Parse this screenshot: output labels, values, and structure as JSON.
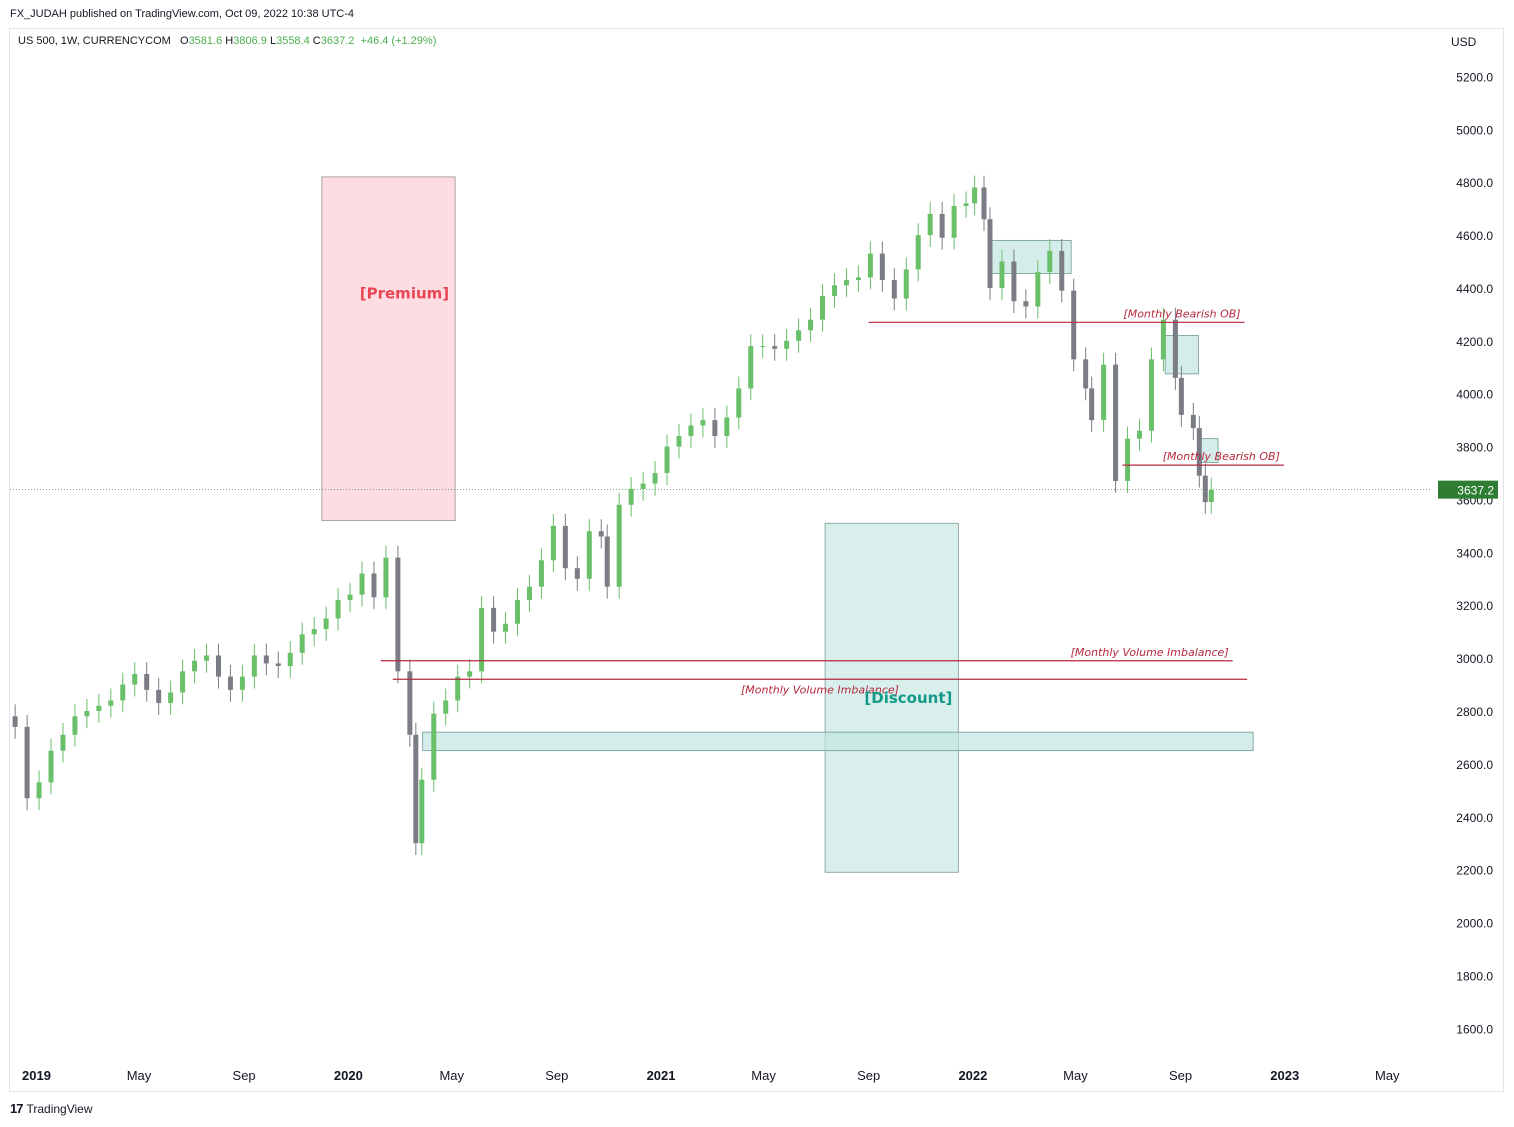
{
  "header": {
    "publisher_line": "FX_JUDAH published on TradingView.com, Oct 09, 2022 10:38 UTC-4"
  },
  "legend": {
    "symbol": "US 500, 1W, CURRENCYCOM",
    "o_label": "O",
    "o": "3581.6",
    "h_label": "H",
    "h": "3806.9",
    "l_label": "L",
    "l": "3558.4",
    "c_label": "C",
    "c": "3637.2",
    "change": "+46.4 (+1.29%)"
  },
  "currency": "USD",
  "footer": {
    "logo": "17",
    "brand": "TradingView"
  },
  "colors": {
    "up": "#6abf69",
    "down": "#7b7d85",
    "premium_fill": "#fddde2",
    "discount_fill": "#d8efec",
    "annotation_red": "#b5283e",
    "discount_text": "#13998a",
    "price_label_bg": "#2e7d32"
  },
  "chart_data": {
    "type": "candlestick",
    "title": "US 500, 1W, CURRENCYCOM",
    "ylabel": "USD",
    "ylim": [
      1480,
      5300
    ],
    "xlim": [
      "2018-12-01",
      "2023-06-20"
    ],
    "y_ticks": [
      1600,
      1800,
      2000,
      2200,
      2400,
      2600,
      2800,
      3000,
      3200,
      3400,
      3600,
      3800,
      4000,
      4200,
      4400,
      4600,
      4800,
      5000,
      5200
    ],
    "y_tick_labels": [
      "1600.0",
      "1800.0",
      "2000.0",
      "2200.0",
      "2400.0",
      "2600.0",
      "2800.0",
      "3000.0",
      "3200.0",
      "3400.0",
      "3600.0",
      "3800.0",
      "4000.0",
      "4200.0",
      "4400.0",
      "4600.0",
      "4800.0",
      "5000.0",
      "5200.0"
    ],
    "x_ticks": [
      {
        "label": "2019",
        "date": "2019-01-01",
        "bold": true
      },
      {
        "label": "May",
        "date": "2019-05-01",
        "bold": false
      },
      {
        "label": "Sep",
        "date": "2019-09-01",
        "bold": false
      },
      {
        "label": "2020",
        "date": "2020-01-01",
        "bold": true
      },
      {
        "label": "May",
        "date": "2020-05-01",
        "bold": false
      },
      {
        "label": "Sep",
        "date": "2020-09-01",
        "bold": false
      },
      {
        "label": "2021",
        "date": "2021-01-01",
        "bold": true
      },
      {
        "label": "May",
        "date": "2021-05-01",
        "bold": false
      },
      {
        "label": "Sep",
        "date": "2021-09-01",
        "bold": false
      },
      {
        "label": "2022",
        "date": "2022-01-01",
        "bold": true
      },
      {
        "label": "May",
        "date": "2022-05-01",
        "bold": false
      },
      {
        "label": "Sep",
        "date": "2022-09-01",
        "bold": false
      },
      {
        "label": "2023",
        "date": "2023-01-01",
        "bold": true
      },
      {
        "label": "May",
        "date": "2023-05-01",
        "bold": false
      }
    ],
    "last_price": 3637.2,
    "last_price_label": "3637.2",
    "series": [
      {
        "date": "2018-12-07",
        "c": 2740
      },
      {
        "date": "2018-12-21",
        "c": 2470
      },
      {
        "date": "2019-01-04",
        "c": 2530
      },
      {
        "date": "2019-01-18",
        "c": 2650
      },
      {
        "date": "2019-02-01",
        "c": 2710
      },
      {
        "date": "2019-02-15",
        "c": 2780
      },
      {
        "date": "2019-03-01",
        "c": 2800
      },
      {
        "date": "2019-03-15",
        "c": 2820
      },
      {
        "date": "2019-03-29",
        "c": 2840
      },
      {
        "date": "2019-04-12",
        "c": 2900
      },
      {
        "date": "2019-04-26",
        "c": 2940
      },
      {
        "date": "2019-05-10",
        "c": 2880
      },
      {
        "date": "2019-05-24",
        "c": 2830
      },
      {
        "date": "2019-06-07",
        "c": 2870
      },
      {
        "date": "2019-06-21",
        "c": 2950
      },
      {
        "date": "2019-07-05",
        "c": 2990
      },
      {
        "date": "2019-07-19",
        "c": 3010
      },
      {
        "date": "2019-08-02",
        "c": 2930
      },
      {
        "date": "2019-08-16",
        "c": 2880
      },
      {
        "date": "2019-08-30",
        "c": 2930
      },
      {
        "date": "2019-09-13",
        "c": 3010
      },
      {
        "date": "2019-09-27",
        "c": 2980
      },
      {
        "date": "2019-10-11",
        "c": 2970
      },
      {
        "date": "2019-10-25",
        "c": 3020
      },
      {
        "date": "2019-11-08",
        "c": 3090
      },
      {
        "date": "2019-11-22",
        "c": 3110
      },
      {
        "date": "2019-12-06",
        "c": 3150
      },
      {
        "date": "2019-12-20",
        "c": 3220
      },
      {
        "date": "2020-01-03",
        "c": 3240
      },
      {
        "date": "2020-01-17",
        "c": 3320
      },
      {
        "date": "2020-01-31",
        "c": 3230
      },
      {
        "date": "2020-02-14",
        "c": 3380
      },
      {
        "date": "2020-02-28",
        "c": 2950
      },
      {
        "date": "2020-03-13",
        "c": 2710
      },
      {
        "date": "2020-03-20",
        "c": 2300
      },
      {
        "date": "2020-03-27",
        "c": 2540
      },
      {
        "date": "2020-04-10",
        "c": 2790
      },
      {
        "date": "2020-04-24",
        "c": 2840
      },
      {
        "date": "2020-05-08",
        "c": 2930
      },
      {
        "date": "2020-05-22",
        "c": 2950
      },
      {
        "date": "2020-06-05",
        "c": 3190
      },
      {
        "date": "2020-06-19",
        "c": 3100
      },
      {
        "date": "2020-07-03",
        "c": 3130
      },
      {
        "date": "2020-07-17",
        "c": 3220
      },
      {
        "date": "2020-07-31",
        "c": 3270
      },
      {
        "date": "2020-08-14",
        "c": 3370
      },
      {
        "date": "2020-08-28",
        "c": 3500
      },
      {
        "date": "2020-09-11",
        "c": 3340
      },
      {
        "date": "2020-09-25",
        "c": 3300
      },
      {
        "date": "2020-10-09",
        "c": 3480
      },
      {
        "date": "2020-10-23",
        "c": 3460
      },
      {
        "date": "2020-10-30",
        "c": 3270
      },
      {
        "date": "2020-11-13",
        "c": 3580
      },
      {
        "date": "2020-11-27",
        "c": 3640
      },
      {
        "date": "2020-12-11",
        "c": 3660
      },
      {
        "date": "2020-12-25",
        "c": 3700
      },
      {
        "date": "2021-01-08",
        "c": 3800
      },
      {
        "date": "2021-01-22",
        "c": 3840
      },
      {
        "date": "2021-02-05",
        "c": 3880
      },
      {
        "date": "2021-02-19",
        "c": 3900
      },
      {
        "date": "2021-03-05",
        "c": 3840
      },
      {
        "date": "2021-03-19",
        "c": 3910
      },
      {
        "date": "2021-04-02",
        "c": 4020
      },
      {
        "date": "2021-04-16",
        "c": 4180
      },
      {
        "date": "2021-04-30",
        "c": 4180
      },
      {
        "date": "2021-05-14",
        "c": 4170
      },
      {
        "date": "2021-05-28",
        "c": 4200
      },
      {
        "date": "2021-06-11",
        "c": 4240
      },
      {
        "date": "2021-06-25",
        "c": 4280
      },
      {
        "date": "2021-07-09",
        "c": 4370
      },
      {
        "date": "2021-07-23",
        "c": 4410
      },
      {
        "date": "2021-08-06",
        "c": 4430
      },
      {
        "date": "2021-08-20",
        "c": 4440
      },
      {
        "date": "2021-09-03",
        "c": 4530
      },
      {
        "date": "2021-09-17",
        "c": 4430
      },
      {
        "date": "2021-10-01",
        "c": 4360
      },
      {
        "date": "2021-10-15",
        "c": 4470
      },
      {
        "date": "2021-10-29",
        "c": 4600
      },
      {
        "date": "2021-11-12",
        "c": 4680
      },
      {
        "date": "2021-11-26",
        "c": 4590
      },
      {
        "date": "2021-12-10",
        "c": 4710
      },
      {
        "date": "2021-12-24",
        "c": 4720
      },
      {
        "date": "2022-01-03",
        "c": 4780
      },
      {
        "date": "2022-01-14",
        "c": 4660
      },
      {
        "date": "2022-01-21",
        "c": 4400
      },
      {
        "date": "2022-02-04",
        "c": 4500
      },
      {
        "date": "2022-02-18",
        "c": 4350
      },
      {
        "date": "2022-03-04",
        "c": 4330
      },
      {
        "date": "2022-03-18",
        "c": 4460
      },
      {
        "date": "2022-04-01",
        "c": 4540
      },
      {
        "date": "2022-04-15",
        "c": 4390
      },
      {
        "date": "2022-04-29",
        "c": 4130
      },
      {
        "date": "2022-05-13",
        "c": 4020
      },
      {
        "date": "2022-05-20",
        "c": 3900
      },
      {
        "date": "2022-06-03",
        "c": 4110
      },
      {
        "date": "2022-06-17",
        "c": 3670
      },
      {
        "date": "2022-07-01",
        "c": 3830
      },
      {
        "date": "2022-07-15",
        "c": 3860
      },
      {
        "date": "2022-07-29",
        "c": 4130
      },
      {
        "date": "2022-08-12",
        "c": 4280
      },
      {
        "date": "2022-08-26",
        "c": 4060
      },
      {
        "date": "2022-09-02",
        "c": 3920
      },
      {
        "date": "2022-09-16",
        "c": 3870
      },
      {
        "date": "2022-09-23",
        "c": 3690
      },
      {
        "date": "2022-09-30",
        "c": 3590
      },
      {
        "date": "2022-10-07",
        "c": 3637
      }
    ],
    "annotations": {
      "premium": {
        "label": "[Premium]",
        "x0": "2019-12-01",
        "x1": "2020-05-05",
        "y0": 3520,
        "y1": 4820
      },
      "discount": {
        "label": "[Discount]",
        "x0": "2021-07-12",
        "x1": "2021-12-15",
        "y0": 2190,
        "y1": 3510
      },
      "green_zones": [
        {
          "x0": "2020-03-28",
          "x1": "2022-11-25",
          "y0": 2650,
          "y1": 2720
        },
        {
          "x0": "2022-01-20",
          "x1": "2022-04-26",
          "y0": 4455,
          "y1": 4580
        },
        {
          "x0": "2022-08-14",
          "x1": "2022-09-22",
          "y0": 4075,
          "y1": 4220
        },
        {
          "x0": "2022-09-25",
          "x1": "2022-10-15",
          "y0": 3740,
          "y1": 3830
        }
      ],
      "lines": [
        {
          "label": "[Monthly Bearish OB]",
          "x0": "2021-09-01",
          "x1": "2022-11-15",
          "y": 4270,
          "label_pos": "right-above"
        },
        {
          "label": "[Monthly Bearish OB]",
          "x0": "2022-06-25",
          "x1": "2022-12-31",
          "y": 3730,
          "label_pos": "right-above"
        },
        {
          "label": "[Monthly Volume Imbalance]",
          "x0": "2020-02-08",
          "x1": "2022-11-01",
          "y": 2990,
          "label_pos": "right-above"
        },
        {
          "label": "[Monthly Volume Imbalance]",
          "x0": "2020-02-22",
          "x1": "2022-11-18",
          "y": 2920,
          "label_pos": "below-mid"
        }
      ]
    },
    "grid": false
  }
}
